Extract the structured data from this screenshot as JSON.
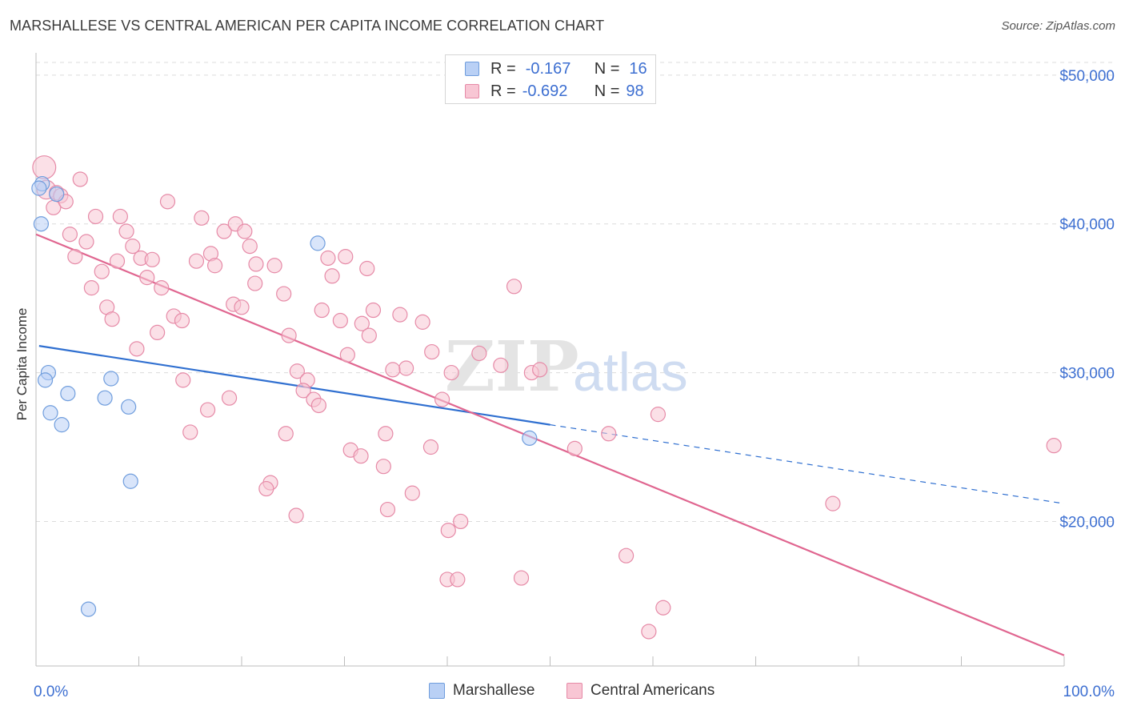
{
  "title": "MARSHALLESE VS CENTRAL AMERICAN PER CAPITA INCOME CORRELATION CHART",
  "source": "Source: ZipAtlas.com",
  "watermark": {
    "zip": "ZIP",
    "atlas": "atlas"
  },
  "colors": {
    "blue_fill": "#b9d0f5",
    "blue_stroke": "#6f9ddd",
    "blue_line": "#2f6fd0",
    "pink_fill": "#f8c6d4",
    "pink_stroke": "#e68aa7",
    "pink_line": "#e06690",
    "axis_label": "#3d6fd1",
    "grid": "#dcdcdc"
  },
  "legend_top": [
    {
      "swatch": "blue",
      "r_label": "R =",
      "r_value": "-0.167",
      "n_label": "N =",
      "n_value": "16"
    },
    {
      "swatch": "pink",
      "r_label": "R =",
      "r_value": "-0.692",
      "n_label": "N =",
      "n_value": "98"
    }
  ],
  "legend_bottom": [
    {
      "swatch": "blue",
      "label": "Marshallese"
    },
    {
      "swatch": "pink",
      "label": "Central Americans"
    }
  ],
  "chart_data": {
    "type": "scatter",
    "title": "MARSHALLESE VS CENTRAL AMERICAN PER CAPITA INCOME CORRELATION CHART",
    "xlabel": "",
    "ylabel": "Per Capita Income",
    "xlim": [
      0,
      100
    ],
    "ylim": [
      10500,
      51500
    ],
    "x_tick_labels": [
      {
        "value": 0,
        "label": "0.0%"
      },
      {
        "value": 100,
        "label": "100.0%"
      }
    ],
    "y_ticks": [
      {
        "value": 20000,
        "label": "$20,000"
      },
      {
        "value": 30000,
        "label": "$30,000"
      },
      {
        "value": 40000,
        "label": "$40,000"
      },
      {
        "value": 50000,
        "label": "$50,000"
      }
    ],
    "grid": "horizontal dashed",
    "legend_placement": "top-center",
    "series": [
      {
        "name": "Marshallese",
        "color": "blue",
        "points": [
          {
            "x": 0.6,
            "y": 42700
          },
          {
            "x": 2.0,
            "y": 42000
          },
          {
            "x": 0.5,
            "y": 40000
          },
          {
            "x": 1.2,
            "y": 30000
          },
          {
            "x": 0.9,
            "y": 29500
          },
          {
            "x": 3.1,
            "y": 28600
          },
          {
            "x": 7.3,
            "y": 29600
          },
          {
            "x": 6.7,
            "y": 28300
          },
          {
            "x": 1.4,
            "y": 27300
          },
          {
            "x": 2.5,
            "y": 26500
          },
          {
            "x": 9.0,
            "y": 27700
          },
          {
            "x": 9.2,
            "y": 22700
          },
          {
            "x": 5.1,
            "y": 14100
          },
          {
            "x": 27.4,
            "y": 38700
          },
          {
            "x": 48.0,
            "y": 25600
          },
          {
            "x": 0.3,
            "y": 42400
          }
        ],
        "trend": {
          "x0": 0.3,
          "y0": 31800,
          "x1": 50.0,
          "y1": 26500,
          "x_dash_end": 100,
          "y_dash_end": 21200
        }
      },
      {
        "name": "Central Americans",
        "color": "pink",
        "points": [
          {
            "x": 0.8,
            "y": 43800,
            "s": 1.6
          },
          {
            "x": 1.0,
            "y": 42300,
            "s": 1.3
          },
          {
            "x": 2.0,
            "y": 42100
          },
          {
            "x": 2.4,
            "y": 41900
          },
          {
            "x": 1.7,
            "y": 41100
          },
          {
            "x": 2.9,
            "y": 41500
          },
          {
            "x": 4.3,
            "y": 43000
          },
          {
            "x": 3.3,
            "y": 39300
          },
          {
            "x": 4.9,
            "y": 38800
          },
          {
            "x": 3.8,
            "y": 37800
          },
          {
            "x": 5.8,
            "y": 40500
          },
          {
            "x": 8.2,
            "y": 40500
          },
          {
            "x": 8.8,
            "y": 39500
          },
          {
            "x": 9.4,
            "y": 38500
          },
          {
            "x": 10.2,
            "y": 37700
          },
          {
            "x": 7.9,
            "y": 37500
          },
          {
            "x": 11.3,
            "y": 37600
          },
          {
            "x": 12.8,
            "y": 41500
          },
          {
            "x": 6.4,
            "y": 36800
          },
          {
            "x": 5.4,
            "y": 35700
          },
          {
            "x": 10.8,
            "y": 36400
          },
          {
            "x": 12.2,
            "y": 35700
          },
          {
            "x": 6.9,
            "y": 34400
          },
          {
            "x": 7.4,
            "y": 33600
          },
          {
            "x": 13.4,
            "y": 33800
          },
          {
            "x": 14.2,
            "y": 33500
          },
          {
            "x": 11.8,
            "y": 32700
          },
          {
            "x": 9.8,
            "y": 31600
          },
          {
            "x": 15.6,
            "y": 37500
          },
          {
            "x": 16.1,
            "y": 40400
          },
          {
            "x": 17.0,
            "y": 38000
          },
          {
            "x": 17.4,
            "y": 37200
          },
          {
            "x": 18.3,
            "y": 39500
          },
          {
            "x": 19.4,
            "y": 40000
          },
          {
            "x": 20.3,
            "y": 39500
          },
          {
            "x": 20.8,
            "y": 38500
          },
          {
            "x": 21.4,
            "y": 37300
          },
          {
            "x": 21.3,
            "y": 36000
          },
          {
            "x": 19.2,
            "y": 34600
          },
          {
            "x": 20.0,
            "y": 34400
          },
          {
            "x": 23.2,
            "y": 37200
          },
          {
            "x": 24.1,
            "y": 35300
          },
          {
            "x": 24.6,
            "y": 32500
          },
          {
            "x": 28.4,
            "y": 37700
          },
          {
            "x": 30.1,
            "y": 37800
          },
          {
            "x": 28.8,
            "y": 36500
          },
          {
            "x": 27.8,
            "y": 34200
          },
          {
            "x": 29.6,
            "y": 33500
          },
          {
            "x": 32.2,
            "y": 37000
          },
          {
            "x": 32.8,
            "y": 34200
          },
          {
            "x": 31.7,
            "y": 33300
          },
          {
            "x": 32.4,
            "y": 32500
          },
          {
            "x": 35.4,
            "y": 33900
          },
          {
            "x": 37.6,
            "y": 33400
          },
          {
            "x": 30.3,
            "y": 31200
          },
          {
            "x": 38.5,
            "y": 31400
          },
          {
            "x": 43.1,
            "y": 31300
          },
          {
            "x": 45.2,
            "y": 30500
          },
          {
            "x": 40.4,
            "y": 30000
          },
          {
            "x": 36.0,
            "y": 30300
          },
          {
            "x": 34.7,
            "y": 30200
          },
          {
            "x": 48.2,
            "y": 30000
          },
          {
            "x": 49.0,
            "y": 30200
          },
          {
            "x": 46.5,
            "y": 35800
          },
          {
            "x": 25.4,
            "y": 30100
          },
          {
            "x": 26.4,
            "y": 29500
          },
          {
            "x": 26.0,
            "y": 28800
          },
          {
            "x": 27.0,
            "y": 28200
          },
          {
            "x": 27.5,
            "y": 27800
          },
          {
            "x": 39.5,
            "y": 28200
          },
          {
            "x": 14.3,
            "y": 29500
          },
          {
            "x": 18.8,
            "y": 28300
          },
          {
            "x": 16.7,
            "y": 27500
          },
          {
            "x": 15.0,
            "y": 26000
          },
          {
            "x": 24.3,
            "y": 25900
          },
          {
            "x": 34.0,
            "y": 25900
          },
          {
            "x": 38.4,
            "y": 25000
          },
          {
            "x": 30.6,
            "y": 24800
          },
          {
            "x": 31.6,
            "y": 24400
          },
          {
            "x": 33.8,
            "y": 23700
          },
          {
            "x": 22.8,
            "y": 22600
          },
          {
            "x": 22.4,
            "y": 22200
          },
          {
            "x": 36.6,
            "y": 21900
          },
          {
            "x": 34.2,
            "y": 20800
          },
          {
            "x": 25.3,
            "y": 20400
          },
          {
            "x": 41.3,
            "y": 20000
          },
          {
            "x": 40.1,
            "y": 19400
          },
          {
            "x": 52.4,
            "y": 24900
          },
          {
            "x": 55.7,
            "y": 25900
          },
          {
            "x": 60.5,
            "y": 27200
          },
          {
            "x": 77.5,
            "y": 21200
          },
          {
            "x": 99.0,
            "y": 25100
          },
          {
            "x": 57.4,
            "y": 17700
          },
          {
            "x": 61.0,
            "y": 14200
          },
          {
            "x": 59.6,
            "y": 12600
          },
          {
            "x": 47.2,
            "y": 16200
          },
          {
            "x": 40.0,
            "y": 16100
          },
          {
            "x": 41.0,
            "y": 16100
          }
        ],
        "trend": {
          "x0": 0.0,
          "y0": 39300,
          "x1": 100,
          "y1": 11000
        }
      }
    ]
  }
}
